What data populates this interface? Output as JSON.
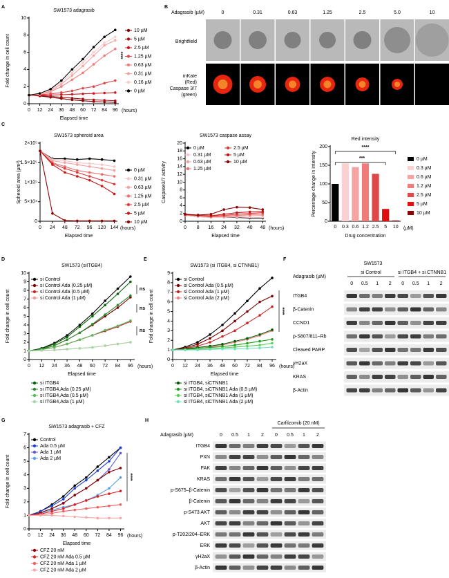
{
  "panel_labels": [
    "A",
    "B",
    "C",
    "D",
    "E",
    "F",
    "G",
    "H"
  ],
  "chart_data": [
    {
      "type": "line",
      "title": "SW1573 adagrasib",
      "ylabel": "Fold change in cell count",
      "xlabel": "Elapsed time",
      "x_unit": "(hours)",
      "annotations": [
        "****"
      ],
      "x": [
        0,
        12,
        24,
        36,
        48,
        60,
        72,
        84,
        96
      ],
      "xlim": [
        0,
        100
      ],
      "xticks": [
        0,
        12,
        24,
        36,
        48,
        60,
        72,
        84,
        96
      ],
      "ylim": [
        0,
        10
      ],
      "yticks": [
        0,
        2,
        4,
        6,
        8,
        10
      ],
      "series": [
        {
          "name": "10 µM",
          "color": "#7a0000",
          "values": [
            1,
            0.9,
            0.75,
            0.6,
            0.45,
            0.35,
            0.25,
            0.2,
            0.15
          ]
        },
        {
          "name": "5 µM",
          "color": "#a50f15",
          "values": [
            1,
            0.95,
            0.85,
            0.75,
            0.65,
            0.55,
            0.45,
            0.4,
            0.35
          ]
        },
        {
          "name": "2.5 µM",
          "color": "#cb181d",
          "values": [
            1,
            1,
            1,
            1.05,
            1.1,
            1.15,
            1.2,
            1.25,
            1.3
          ]
        },
        {
          "name": "1.25 µM",
          "color": "#e0474a",
          "values": [
            1,
            1.05,
            1.15,
            1.3,
            1.5,
            1.8,
            2.0,
            2.4,
            2.7
          ]
        },
        {
          "name": "0.63 µM",
          "color": "#ef7b7b",
          "values": [
            1,
            1.1,
            1.4,
            2.0,
            2.8,
            3.6,
            4.6,
            5.6,
            6.4
          ]
        },
        {
          "name": "0.31 µM",
          "color": "#f5a3a3",
          "values": [
            1,
            1.1,
            1.5,
            2.3,
            3.3,
            4.4,
            5.6,
            6.8,
            7.4
          ]
        },
        {
          "name": "0.16 µM",
          "color": "#f9cccc",
          "values": [
            1,
            1.15,
            1.6,
            2.5,
            3.6,
            4.8,
            6.0,
            7.1,
            7.8
          ]
        },
        {
          "name": "0 µM",
          "color": "#000000",
          "values": [
            1,
            1.2,
            1.7,
            2.7,
            4.0,
            5.2,
            6.6,
            7.8,
            8.6
          ]
        }
      ]
    },
    {
      "type": "line",
      "title": "SW1573 spheroid area",
      "ylabel": "Spheroid area (µm²)",
      "xlabel": "Elapsed time",
      "x_unit": "(hours)",
      "x": [
        0,
        24,
        48,
        72,
        96,
        120,
        144
      ],
      "xlim": [
        0,
        150
      ],
      "xticks": [
        0,
        24,
        48,
        72,
        96,
        120,
        144
      ],
      "ylim": [
        0,
        200000
      ],
      "yticks": [
        0,
        {
          "value": 50000,
          "label": "5×10⁴"
        },
        {
          "value": 100000,
          "label": "1×10⁵"
        },
        {
          "value": 150000,
          "label": "1.5×10⁵"
        },
        {
          "value": 200000,
          "label": "2×10⁵"
        }
      ],
      "series": [
        {
          "name": "0 µM",
          "color": "#000000",
          "values": [
            180000,
            160000,
            160000,
            158000,
            160000,
            158000,
            155000
          ]
        },
        {
          "name": "0.31 µM",
          "color": "#f7c6c6",
          "values": [
            180000,
            158000,
            155000,
            150000,
            148000,
            145000,
            140000
          ]
        },
        {
          "name": "0.63 µM",
          "color": "#f2a0a0",
          "values": [
            180000,
            155000,
            150000,
            145000,
            140000,
            135000,
            130000
          ]
        },
        {
          "name": "1.25 µM",
          "color": "#ea7070",
          "values": [
            180000,
            150000,
            140000,
            130000,
            125000,
            120000,
            115000
          ]
        },
        {
          "name": "2.5 µM",
          "color": "#de3c3c",
          "values": [
            180000,
            148000,
            135000,
            125000,
            115000,
            105000,
            95000
          ]
        },
        {
          "name": "5 µM",
          "color": "#c41a1a",
          "values": [
            180000,
            145000,
            125000,
            115000,
            105000,
            90000,
            70000
          ]
        },
        {
          "name": "10 µM",
          "color": "#8b0000",
          "values": [
            180000,
            20000,
            2000,
            1000,
            1000,
            1000,
            1000
          ]
        }
      ]
    },
    {
      "type": "line",
      "title": "SW1573 caspase assay",
      "ylabel": "Caspase3/7 activity",
      "xlabel": "Elapsed time",
      "x_unit": "(hours)",
      "x": [
        0,
        8,
        16,
        24,
        32,
        40,
        48
      ],
      "xlim": [
        0,
        50
      ],
      "xticks": [
        0,
        8,
        16,
        24,
        32,
        40,
        48
      ],
      "ylim": [
        0,
        20
      ],
      "yticks": [
        0,
        2,
        4,
        6,
        8,
        10,
        12,
        14,
        16,
        18,
        20
      ],
      "series": [
        {
          "name": "0 µM",
          "color": "#000000",
          "values": [
            1.5,
            1.2,
            1.0,
            1.0,
            1.0,
            0.8,
            0.8
          ]
        },
        {
          "name": "0.31 µM",
          "color": "#f7c6c6",
          "values": [
            1.5,
            1.2,
            1.0,
            1.0,
            1.1,
            1.0,
            1.0
          ]
        },
        {
          "name": "0.63 µM",
          "color": "#f2a0a0",
          "values": [
            1.6,
            1.3,
            1.1,
            1.2,
            1.3,
            1.4,
            1.5
          ]
        },
        {
          "name": "1.25 µM",
          "color": "#ea7070",
          "values": [
            1.6,
            1.4,
            1.2,
            1.3,
            1.5,
            1.7,
            1.8
          ]
        },
        {
          "name": "2.5 µM",
          "color": "#de3c3c",
          "values": [
            1.7,
            1.5,
            1.3,
            1.5,
            1.8,
            2.0,
            2.2
          ]
        },
        {
          "name": "5 µM",
          "color": "#c41a1a",
          "values": [
            1.8,
            1.5,
            1.4,
            1.8,
            2.2,
            2.4,
            2.5
          ]
        },
        {
          "name": "10 µM",
          "color": "#8b0000",
          "values": [
            1.8,
            1.6,
            1.8,
            3.0,
            3.6,
            3.5,
            3.0
          ]
        }
      ]
    },
    {
      "type": "bar",
      "title": "Red intensity",
      "ylabel": "Percentage change in intensity",
      "xlabel": "Drug concentration",
      "x_unit": "(µM)",
      "annotations": [
        "****",
        "***"
      ],
      "categories": [
        "0",
        "0.3",
        "0.6",
        "1.2",
        "2.5",
        "5",
        "10"
      ],
      "values": [
        100,
        155,
        145,
        155,
        127,
        33,
        2
      ],
      "colors": [
        "#000000",
        "#fbd0d0",
        "#f5a3a3",
        "#ef7b7b",
        "#e04848",
        "#e01010",
        "#8b0000"
      ],
      "legend": [
        "0 µM",
        "0.3 µM",
        "0.6 µM",
        "1.2 µM",
        "2.5 µM",
        "5 µM",
        "10 µM"
      ],
      "ylim": [
        0,
        200
      ],
      "yticks": [
        0,
        50,
        100,
        150,
        200
      ]
    },
    {
      "type": "line",
      "title": "SW1573 (siITGB4)",
      "ylabel": "Fold change in cell count",
      "xlabel": "Elapsed time",
      "x_unit": "(hours)",
      "annotations": [
        "ns",
        "ns",
        "ns"
      ],
      "x": [
        0,
        12,
        24,
        36,
        48,
        60,
        72,
        84,
        96
      ],
      "xlim": [
        0,
        100
      ],
      "xticks": [
        0,
        12,
        24,
        36,
        48,
        60,
        72,
        84,
        96
      ],
      "ylim": [
        0,
        10
      ],
      "yticks": [
        0,
        1,
        2,
        3,
        4,
        5,
        6,
        7,
        8,
        9,
        10
      ],
      "series": [
        {
          "name": "si Control",
          "color": "#000000",
          "values": [
            1,
            1.3,
            1.9,
            2.8,
            4.0,
            5.3,
            6.8,
            8.2,
            9.6
          ]
        },
        {
          "name": "si Control Ada (0.25 µM)",
          "color": "#7a0000",
          "values": [
            1,
            1.2,
            1.6,
            2.3,
            3.1,
            4.0,
            5.0,
            6.0,
            7.2
          ]
        },
        {
          "name": "si Control Ada (0.5 µM)",
          "color": "#c62828",
          "values": [
            1,
            1.15,
            1.4,
            1.8,
            2.3,
            2.8,
            3.3,
            3.8,
            4.4
          ]
        },
        {
          "name": "si Control Ada (1 µM)",
          "color": "#ef9a9a",
          "values": [
            1,
            1.05,
            1.1,
            1.2,
            1.3,
            1.4,
            1.6,
            1.8,
            2.0
          ]
        },
        {
          "name": "si ITGB4",
          "color": "#006400",
          "values": [
            1,
            1.25,
            1.8,
            2.6,
            3.8,
            5.0,
            6.3,
            7.6,
            9.0
          ]
        },
        {
          "name": "si ITGB4,Ada (0.25 µM)",
          "color": "#2e8b2e",
          "values": [
            1,
            1.2,
            1.6,
            2.3,
            3.1,
            4.1,
            5.2,
            6.3,
            7.4
          ]
        },
        {
          "name": "si ITGB4,Ada (0.5 µM)",
          "color": "#5cb85c",
          "values": [
            1,
            1.15,
            1.4,
            1.8,
            2.3,
            2.8,
            3.4,
            3.9,
            4.5
          ]
        },
        {
          "name": "si ITGB4,Ada (1 µM)",
          "color": "#a5d6a7",
          "values": [
            1,
            1.05,
            1.1,
            1.2,
            1.3,
            1.4,
            1.6,
            1.8,
            2.0
          ]
        }
      ]
    },
    {
      "type": "line",
      "title": "SW1573 (si ITGB4, si CTNNB1)",
      "ylabel": "Fold change in cell count",
      "xlabel": "Elapsed time",
      "x_unit": "(hours)",
      "annotations": [
        "****"
      ],
      "x": [
        0,
        12,
        24,
        36,
        48,
        60,
        72,
        84,
        96
      ],
      "xlim": [
        0,
        100
      ],
      "xticks": [
        0,
        12,
        24,
        36,
        48,
        60,
        72,
        84,
        96
      ],
      "ylim": [
        0,
        9
      ],
      "yticks": [
        0,
        1,
        2,
        3,
        4,
        5,
        6,
        7,
        8,
        9
      ],
      "series": [
        {
          "name": "si Control",
          "color": "#000000",
          "values": [
            1,
            1.3,
            1.8,
            2.6,
            3.6,
            4.8,
            6.1,
            7.4,
            8.5
          ]
        },
        {
          "name": "si Control Ada (0.5 µM)",
          "color": "#7a0000",
          "values": [
            1,
            1.2,
            1.6,
            2.2,
            3.0,
            4.0,
            5.0,
            6.0,
            6.6
          ]
        },
        {
          "name": "si Control Ada (1 µM)",
          "color": "#c62828",
          "values": [
            1,
            1.15,
            1.4,
            1.8,
            2.4,
            3.0,
            3.8,
            4.6,
            5.5
          ]
        },
        {
          "name": "si Control Ada (2 µM)",
          "color": "#f08080",
          "values": [
            1,
            1.05,
            1.15,
            1.3,
            1.5,
            1.8,
            2.1,
            2.5,
            3.0
          ]
        },
        {
          "name": "si ITGB4, siCTNNB1",
          "color": "#005a00",
          "values": [
            1,
            1.1,
            1.25,
            1.4,
            1.6,
            1.9,
            2.2,
            2.6,
            3.1
          ]
        },
        {
          "name": "si ITGB4, siCTNNB1 Ada (0.5 µM)",
          "color": "#1f9e1f",
          "values": [
            1,
            1.05,
            1.15,
            1.25,
            1.35,
            1.5,
            1.7,
            1.9,
            2.1
          ]
        },
        {
          "name": "si ITGB4, siCTNNB1 Ada (1 µM)",
          "color": "#55d055",
          "values": [
            1,
            1.0,
            1.05,
            1.1,
            1.2,
            1.3,
            1.4,
            1.5,
            1.7
          ]
        },
        {
          "name": "si ITGB4, siCTNNB1 Ada (2 µM)",
          "color": "#6fe0c0",
          "values": [
            1,
            1.0,
            1.0,
            1.05,
            1.1,
            1.1,
            1.15,
            1.2,
            1.3
          ]
        }
      ]
    },
    {
      "type": "line",
      "title": "SW1573 adagrasib + CFZ",
      "ylabel": "Fold change in cell count",
      "xlabel": "Elapsed time",
      "x_unit": "(hours)",
      "annotations": [
        "****"
      ],
      "x": [
        0,
        12,
        24,
        36,
        48,
        60,
        72,
        84,
        96
      ],
      "xlim": [
        0,
        100
      ],
      "xticks": [
        0,
        12,
        24,
        36,
        48,
        60,
        72,
        84,
        96
      ],
      "ylim": [
        0,
        7
      ],
      "yticks": [
        0,
        1,
        2,
        3,
        4,
        5,
        6,
        7
      ],
      "series": [
        {
          "name": "Control",
          "color": "#000000",
          "values": [
            1,
            1.3,
            1.8,
            2.4,
            3.2,
            3.8,
            4.6,
            5.3,
            6.0
          ]
        },
        {
          "name": "Ada 0.5 µM",
          "color": "#1a3fd8",
          "values": [
            1,
            1.3,
            1.7,
            2.2,
            3.0,
            3.6,
            4.3,
            5.0,
            6.0
          ]
        },
        {
          "name": "Ada 1 µM",
          "color": "#5a5acd",
          "values": [
            1,
            1.2,
            1.5,
            1.9,
            2.5,
            3.0,
            3.6,
            4.4,
            5.6
          ]
        },
        {
          "name": "Ada 2 µM",
          "color": "#5aa0e6",
          "values": [
            1,
            1.15,
            1.4,
            1.6,
            1.8,
            2.1,
            2.5,
            3.0,
            3.8
          ]
        },
        {
          "name": "CFZ 20 nM",
          "color": "#8b0000",
          "values": [
            1,
            1.2,
            1.5,
            1.9,
            2.5,
            3.0,
            3.6,
            4.2,
            4.5
          ]
        },
        {
          "name": "CFZ 20 nM Ada 0.5 µM",
          "color": "#d62020",
          "values": [
            1,
            1.1,
            1.3,
            1.5,
            1.8,
            2.1,
            2.4,
            2.6,
            2.8
          ]
        },
        {
          "name": "CFZ 20 nM Ada 1 µM",
          "color": "#ee6060",
          "values": [
            1,
            1.05,
            1.15,
            1.3,
            1.4,
            1.5,
            1.6,
            1.7,
            1.8
          ]
        },
        {
          "name": "CFZ 20 nM Ada 2 µM",
          "color": "#f5a8a8",
          "values": [
            1,
            1.0,
            1.0,
            0.95,
            0.9,
            0.85,
            0.8,
            0.8,
            0.8
          ]
        }
      ]
    }
  ],
  "microscopy": {
    "drug_label": "Adagrasib (µM)",
    "concentrations": [
      "0",
      "0.31",
      "0.63",
      "1.25",
      "2.5",
      "5.0",
      "10"
    ],
    "brightfield_label": "Brightfield",
    "fluorescence_label_lines": [
      "mKate",
      "(Red)",
      "Caspase 3/7",
      "(green)"
    ]
  },
  "blot_F": {
    "title": "SW1573",
    "drug_label": "Adagrasib (µM)",
    "groups": [
      "si Control",
      "si ITGB4 + si CTNNB1"
    ],
    "lanes": [
      "0",
      "0.5",
      "1",
      "2",
      "0",
      "0.5",
      "1",
      "2"
    ],
    "rows": [
      "ITGB4",
      "β-Catenin",
      "CCND1",
      "p-S807/811–Rb",
      "Cleaved PARP",
      "γH2aX",
      "KRAS",
      "β-Actin"
    ]
  },
  "blot_H": {
    "drug_label": "Adagrasib (µM)",
    "treatment_label": "Carfilzomib (20 nM)",
    "lanes": [
      "0",
      "0.5",
      "1",
      "2",
      "0",
      "0.5",
      "1",
      "2"
    ],
    "rows": [
      "ITGB4",
      "PXN",
      "FAK",
      "KRAS",
      "p-S675–β-Catenin",
      "β-Catenin",
      "p-S473 AKT",
      "AKT",
      "p-T202/204–ERK",
      "ERK",
      "γH2aX",
      "β-Actin"
    ]
  }
}
